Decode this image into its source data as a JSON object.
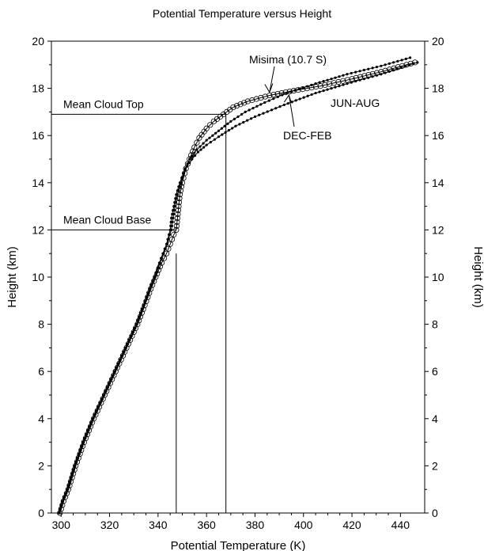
{
  "chart_data": {
    "type": "line",
    "title": "Potential Temperature versus Height",
    "xlabel": "Potential Temperature (K)",
    "ylabel": "Height (km)",
    "ylabel_right": "Height (km)",
    "xlim": [
      296,
      450
    ],
    "ylim": [
      0,
      20
    ],
    "x_ticks": [
      300,
      320,
      340,
      360,
      380,
      400,
      420,
      440
    ],
    "y_ticks": [
      0,
      2,
      4,
      6,
      8,
      10,
      12,
      14,
      16,
      18,
      20
    ],
    "grid": false,
    "series": [
      {
        "name": "Misima (10.7 S)",
        "marker": "open-circle",
        "points": [
          [
            299.5,
            0
          ],
          [
            301,
            0.5
          ],
          [
            303,
            1
          ],
          [
            306,
            2
          ],
          [
            309.5,
            3
          ],
          [
            313.5,
            4
          ],
          [
            318,
            5
          ],
          [
            322.5,
            6
          ],
          [
            327,
            7
          ],
          [
            331.5,
            8
          ],
          [
            334.5,
            8.8
          ],
          [
            337,
            9.5
          ],
          [
            339,
            10
          ],
          [
            341.5,
            10.6
          ],
          [
            343.5,
            11
          ],
          [
            345,
            11.4
          ],
          [
            346.5,
            11.8
          ],
          [
            347.5,
            12
          ],
          [
            348,
            12.5
          ],
          [
            348.5,
            13
          ],
          [
            349,
            13.5
          ],
          [
            350,
            14
          ],
          [
            351.5,
            14.6
          ],
          [
            353,
            15
          ],
          [
            355,
            15.5
          ],
          [
            357,
            15.9
          ],
          [
            360,
            16.3
          ],
          [
            363,
            16.6
          ],
          [
            367,
            16.9
          ],
          [
            371,
            17.2
          ],
          [
            377,
            17.45
          ],
          [
            386,
            17.7
          ],
          [
            396,
            17.9
          ],
          [
            407,
            18.1
          ],
          [
            420,
            18.4
          ],
          [
            432,
            18.7
          ],
          [
            446,
            19.1
          ]
        ]
      },
      {
        "name": "JUN-AUG",
        "marker": "dot",
        "points": [
          [
            299,
            0
          ],
          [
            300.5,
            0.5
          ],
          [
            302.5,
            1
          ],
          [
            305.5,
            2
          ],
          [
            309,
            3
          ],
          [
            313,
            4
          ],
          [
            317.5,
            5
          ],
          [
            322,
            6
          ],
          [
            326.5,
            7
          ],
          [
            331,
            8
          ],
          [
            334,
            8.8
          ],
          [
            336.5,
            9.5
          ],
          [
            338.5,
            10
          ],
          [
            340.5,
            10.6
          ],
          [
            342,
            11
          ],
          [
            343.5,
            11.4
          ],
          [
            344.5,
            11.8
          ],
          [
            345,
            12
          ],
          [
            345.5,
            12.5
          ],
          [
            346.5,
            13
          ],
          [
            347.5,
            13.5
          ],
          [
            349,
            14
          ],
          [
            350.5,
            14.4
          ],
          [
            352,
            14.7
          ],
          [
            354,
            15
          ],
          [
            356.5,
            15.3
          ],
          [
            360,
            15.6
          ],
          [
            365,
            15.95
          ],
          [
            372,
            16.4
          ],
          [
            380,
            16.8
          ],
          [
            392,
            17.3
          ],
          [
            405,
            17.8
          ],
          [
            418,
            18.2
          ],
          [
            432,
            18.6
          ],
          [
            447,
            19.1
          ]
        ]
      },
      {
        "name": "DEC-FEB",
        "marker": "dot",
        "points": [
          [
            299.3,
            0
          ],
          [
            300.8,
            0.5
          ],
          [
            302.8,
            1
          ],
          [
            305.8,
            2
          ],
          [
            309.3,
            3
          ],
          [
            313.3,
            4
          ],
          [
            317.8,
            5
          ],
          [
            322.3,
            6
          ],
          [
            326.8,
            7
          ],
          [
            331.3,
            8
          ],
          [
            334.2,
            8.8
          ],
          [
            336.8,
            9.5
          ],
          [
            338.8,
            10
          ],
          [
            340.8,
            10.6
          ],
          [
            342.3,
            11
          ],
          [
            343.8,
            11.4
          ],
          [
            344.8,
            11.8
          ],
          [
            345.5,
            12
          ],
          [
            346.2,
            12.5
          ],
          [
            347,
            13
          ],
          [
            348,
            13.5
          ],
          [
            349.5,
            14
          ],
          [
            351.2,
            14.6
          ],
          [
            353,
            15
          ],
          [
            356,
            15.4
          ],
          [
            360,
            15.8
          ],
          [
            365,
            16.2
          ],
          [
            370,
            16.6
          ],
          [
            376,
            17
          ],
          [
            384,
            17.4
          ],
          [
            393,
            17.8
          ],
          [
            405,
            18.2
          ],
          [
            418,
            18.6
          ],
          [
            432,
            18.95
          ],
          [
            444,
            19.3
          ]
        ]
      }
    ],
    "reference_lines": [
      {
        "label": "Mean Cloud Top",
        "y": 16.9,
        "x_from": 296,
        "x_to": 368
      },
      {
        "label": "Mean Cloud Base",
        "y": 12,
        "x_from": 296,
        "x_to": 347.5
      }
    ],
    "vertical_lines": [
      {
        "x": 368,
        "y_from": 0,
        "y_to": 16.9
      },
      {
        "x": 347.5,
        "y_from": 0,
        "y_to": 11
      }
    ],
    "annotations": [
      {
        "text": "Misima (10.7 S)",
        "arrow_to": [
          386,
          17.7
        ]
      },
      {
        "text": "JUN-AUG"
      },
      {
        "text": "DEC-FEB",
        "arrow_to": [
          394,
          17.85
        ]
      }
    ]
  }
}
